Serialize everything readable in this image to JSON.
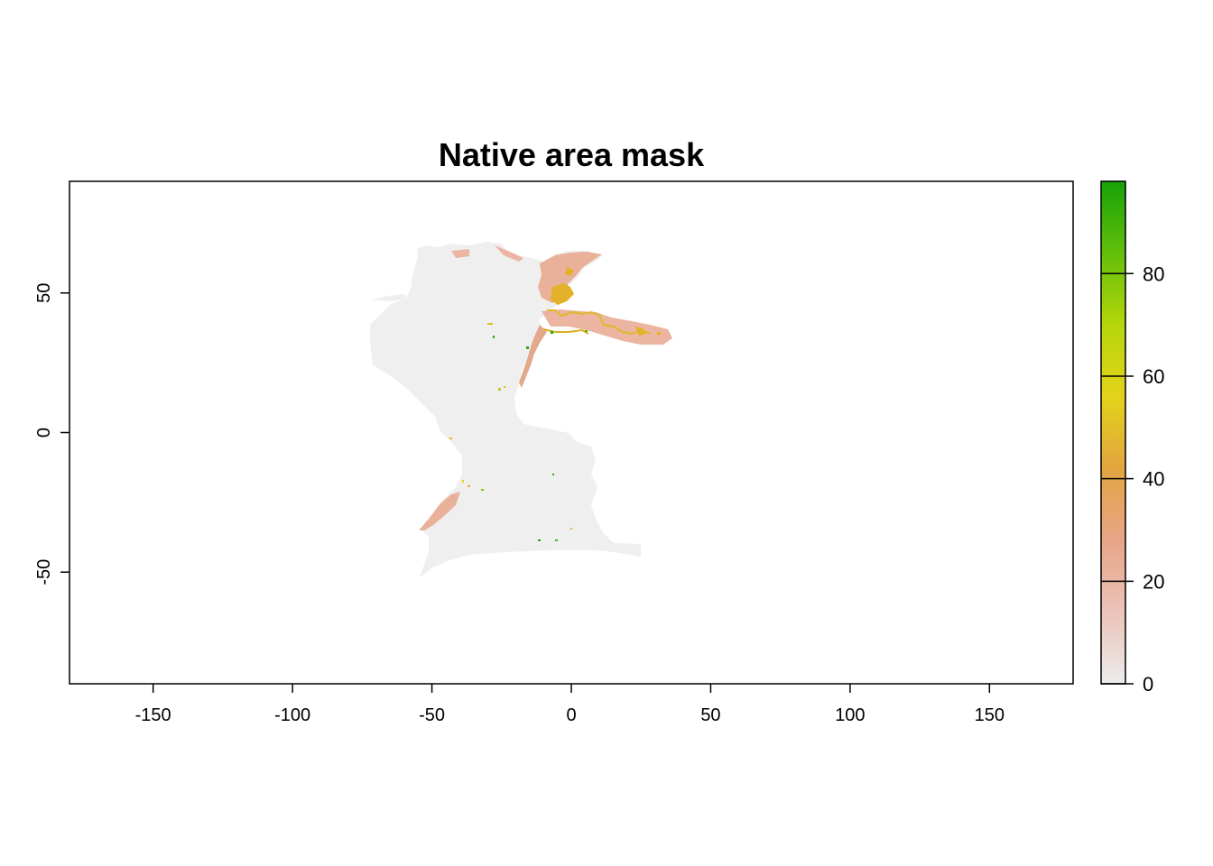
{
  "map": {
    "title": "Native area mask",
    "x_range": [
      -180,
      180
    ],
    "y_range": [
      -90,
      90
    ],
    "x_ticks": [
      {
        "value": -150,
        "label": "-150"
      },
      {
        "value": -100,
        "label": "-100"
      },
      {
        "value": -50,
        "label": "-50"
      },
      {
        "value": 0,
        "label": "0"
      },
      {
        "value": 50,
        "label": "50"
      },
      {
        "value": 100,
        "label": "100"
      },
      {
        "value": 150,
        "label": "150"
      }
    ],
    "y_ticks": [
      {
        "value": 50,
        "label": "50"
      },
      {
        "value": 0,
        "label": "0"
      },
      {
        "value": -50,
        "label": "-50"
      }
    ],
    "colors": {
      "background": "#efefef",
      "low": "#e8a48a",
      "mid": "#e6a54a",
      "high": "#e6c22a",
      "green": "#2aa50f"
    }
  },
  "legend": {
    "range": [
      0,
      98
    ],
    "ticks": [
      {
        "value": 0,
        "label": "0"
      },
      {
        "value": 20,
        "label": "20"
      },
      {
        "value": 40,
        "label": "40"
      },
      {
        "value": 60,
        "label": "60"
      },
      {
        "value": 80,
        "label": "80"
      }
    ],
    "gradient_colors": [
      "#ececec",
      "#ebc3b8",
      "#e8a587",
      "#e2a540",
      "#e3d21a",
      "#b6d60b",
      "#62bf0a",
      "#18a108"
    ]
  }
}
